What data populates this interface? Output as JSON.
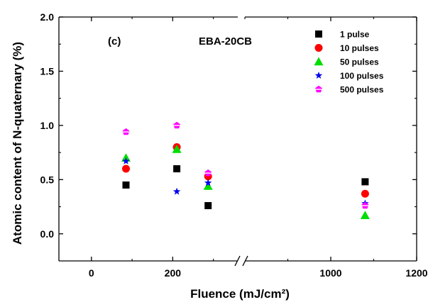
{
  "chart_data": {
    "type": "scatter",
    "panel_label": "(c)",
    "sample_label": "EBA-20CB",
    "xlabel": "Fluence (mJ/cm²)",
    "ylabel": "Atomic content of N-quaternary (%)",
    "x_axis_broken": true,
    "x_segments": [
      {
        "range": [
          -80,
          360
        ],
        "tick_values": [
          0,
          200
        ],
        "tick_labels": [
          "0",
          "200"
        ]
      },
      {
        "range": [
          800,
          1200
        ],
        "tick_values": [
          1000,
          1200
        ],
        "tick_labels": [
          "1000",
          "1200"
        ]
      }
    ],
    "ylim": [
      -0.25,
      2.0
    ],
    "y_ticks": [
      0.0,
      0.5,
      1.0,
      1.5,
      2.0
    ],
    "y_tick_labels": [
      "0.0",
      "0.5",
      "1.0",
      "1.5",
      "2.0"
    ],
    "grid": false,
    "legend_position": "top-right",
    "series": [
      {
        "name": "1 pulse",
        "marker": "square",
        "color": "#000000",
        "points": [
          [
            85,
            0.45
          ],
          [
            210,
            0.6
          ],
          [
            287,
            0.26
          ],
          [
            1080,
            0.48
          ]
        ]
      },
      {
        "name": "10 pulses",
        "marker": "circle",
        "color": "#ff0000",
        "points": [
          [
            85,
            0.6
          ],
          [
            210,
            0.8
          ],
          [
            287,
            0.53
          ],
          [
            1080,
            0.37
          ]
        ]
      },
      {
        "name": "50 pulses",
        "marker": "triangle",
        "color": "#00dd00",
        "points": [
          [
            85,
            0.7
          ],
          [
            210,
            0.78
          ],
          [
            287,
            0.44
          ],
          [
            1080,
            0.17
          ]
        ]
      },
      {
        "name": "100 pulses",
        "marker": "star",
        "color": "#0000ee",
        "points": [
          [
            85,
            0.67
          ],
          [
            210,
            0.39
          ],
          [
            287,
            0.47
          ],
          [
            1080,
            0.28
          ]
        ]
      },
      {
        "name": "500 pulses",
        "marker": "pentagon",
        "color": "#ff00ff",
        "points": [
          [
            85,
            0.94
          ],
          [
            210,
            1.0
          ],
          [
            287,
            0.56
          ],
          [
            1080,
            0.26
          ]
        ]
      }
    ]
  }
}
